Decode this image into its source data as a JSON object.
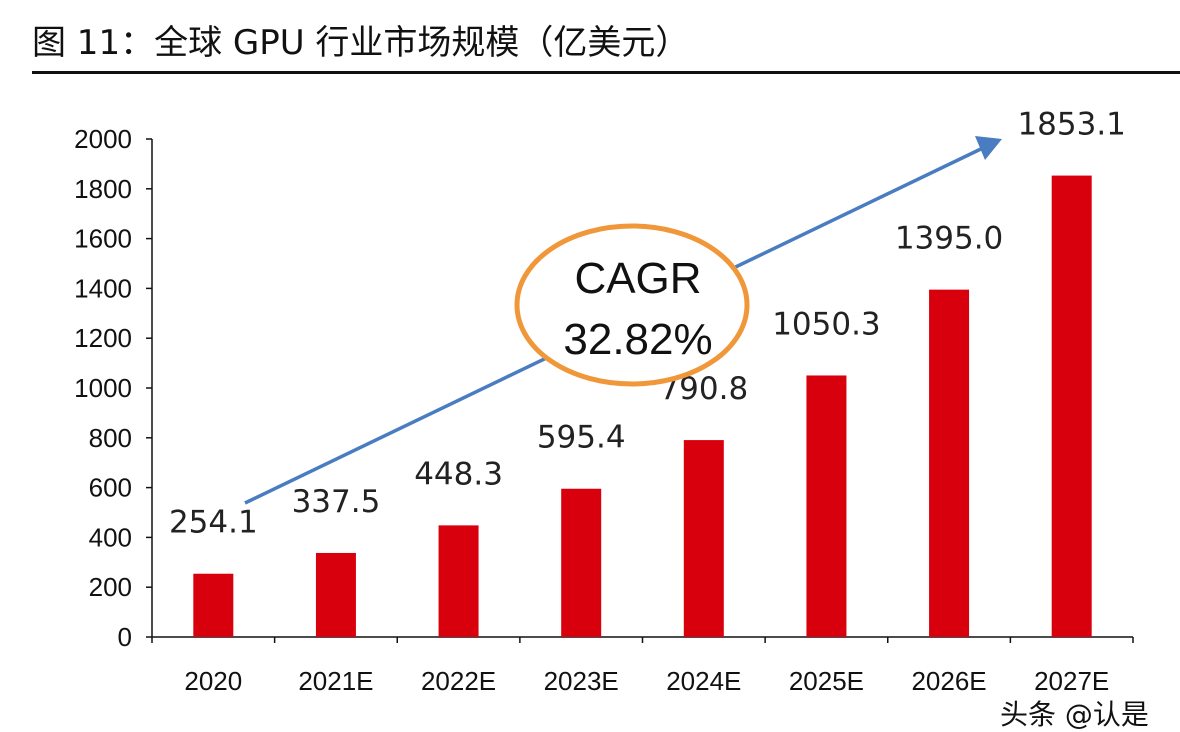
{
  "chart_data": {
    "type": "bar",
    "title": "图 11：全球 GPU 行业市场规模（亿美元）",
    "categories": [
      "2020",
      "2021E",
      "2022E",
      "2023E",
      "2024E",
      "2025E",
      "2026E",
      "2027E"
    ],
    "values": [
      254.1,
      337.5,
      448.3,
      595.4,
      790.8,
      1050.3,
      1395.0,
      1853.1
    ],
    "data_labels": [
      "254.1",
      "337.5",
      "448.3",
      "595.4",
      "790.8",
      "1050.3",
      "1395.0",
      "1853.1"
    ],
    "ylim": [
      0,
      2000
    ],
    "yticks": [
      "0",
      "200",
      "400",
      "600",
      "800",
      "1000",
      "1200",
      "1400",
      "1600",
      "1800",
      "2000"
    ],
    "xlabel": "",
    "ylabel": "",
    "grid": false,
    "legend": "none",
    "bar_color": "#d9000d",
    "annotation": {
      "line1": "CAGR",
      "line2": "32.82%",
      "ellipse_color": "#f0973a",
      "arrow_color": "#4a7cc2"
    }
  },
  "watermark": "头条 @认是"
}
